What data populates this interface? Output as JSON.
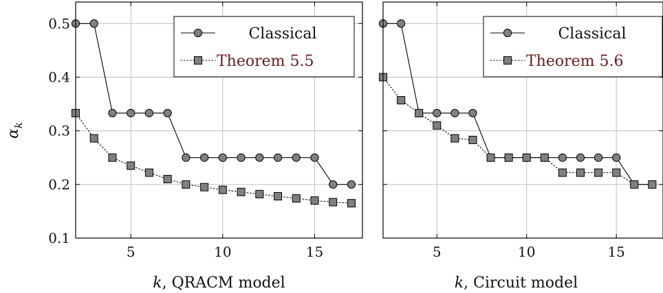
{
  "colors": {
    "classical_fill": "#808080",
    "theorem_fill": "#808080",
    "theorem_legend_text": "#6b1a1a",
    "grid": "#bfbfbf",
    "line": "#000000"
  },
  "shared": {
    "ylabel": "α_k",
    "ylabel_main": "α",
    "ylabel_sub": "k"
  },
  "chart_data": [
    {
      "type": "line",
      "xlabel_var": "k",
      "xlabel_rest": ", QRACM model",
      "x_ticks": [
        5,
        10,
        15
      ],
      "y_ticks": [
        0.1,
        0.2,
        0.3,
        0.4,
        0.5
      ],
      "y_tick_labels": [
        "0.1",
        "0.2",
        "0.3",
        "0.4",
        "0.5"
      ],
      "xlim": [
        2,
        17.6
      ],
      "ylim": [
        0.1,
        0.54
      ],
      "grid": true,
      "legend_position": "top-right",
      "series": [
        {
          "name": "Classical",
          "marker": "circle",
          "style": "solid",
          "x": [
            2,
            3,
            4,
            5,
            6,
            7,
            8,
            9,
            10,
            11,
            12,
            13,
            14,
            15,
            16,
            17
          ],
          "values": [
            0.5,
            0.5,
            0.333,
            0.333,
            0.333,
            0.333,
            0.25,
            0.25,
            0.25,
            0.25,
            0.25,
            0.25,
            0.25,
            0.25,
            0.2,
            0.2
          ]
        },
        {
          "name": "Theorem 5.5",
          "marker": "square",
          "style": "dotted",
          "x": [
            2,
            3,
            4,
            5,
            6,
            7,
            8,
            9,
            10,
            11,
            12,
            13,
            14,
            15,
            16,
            17
          ],
          "values": [
            0.333,
            0.286,
            0.25,
            0.235,
            0.222,
            0.21,
            0.2,
            0.195,
            0.19,
            0.186,
            0.182,
            0.178,
            0.174,
            0.17,
            0.167,
            0.165
          ]
        }
      ]
    },
    {
      "type": "line",
      "xlabel_var": "k",
      "xlabel_rest": ", Circuit model",
      "x_ticks": [
        5,
        10,
        15
      ],
      "y_ticks": [
        0.1,
        0.2,
        0.3,
        0.4,
        0.5
      ],
      "xlim": [
        2,
        17.6
      ],
      "ylim": [
        0.1,
        0.54
      ],
      "grid": true,
      "legend_position": "top-right",
      "series": [
        {
          "name": "Classical",
          "marker": "circle",
          "style": "solid",
          "x": [
            2,
            3,
            4,
            5,
            6,
            7,
            8,
            9,
            10,
            11,
            12,
            13,
            14,
            15,
            16,
            17
          ],
          "values": [
            0.5,
            0.5,
            0.333,
            0.333,
            0.333,
            0.333,
            0.25,
            0.25,
            0.25,
            0.25,
            0.25,
            0.25,
            0.25,
            0.25,
            0.2,
            0.2
          ]
        },
        {
          "name": "Theorem 5.6",
          "marker": "square",
          "style": "dotted",
          "x": [
            2,
            3,
            4,
            5,
            6,
            7,
            8,
            9,
            10,
            11,
            12,
            13,
            14,
            15,
            16,
            17
          ],
          "values": [
            0.4,
            0.357,
            0.333,
            0.31,
            0.286,
            0.283,
            0.25,
            0.25,
            0.25,
            0.25,
            0.222,
            0.222,
            0.222,
            0.222,
            0.2,
            0.2
          ]
        }
      ]
    }
  ]
}
